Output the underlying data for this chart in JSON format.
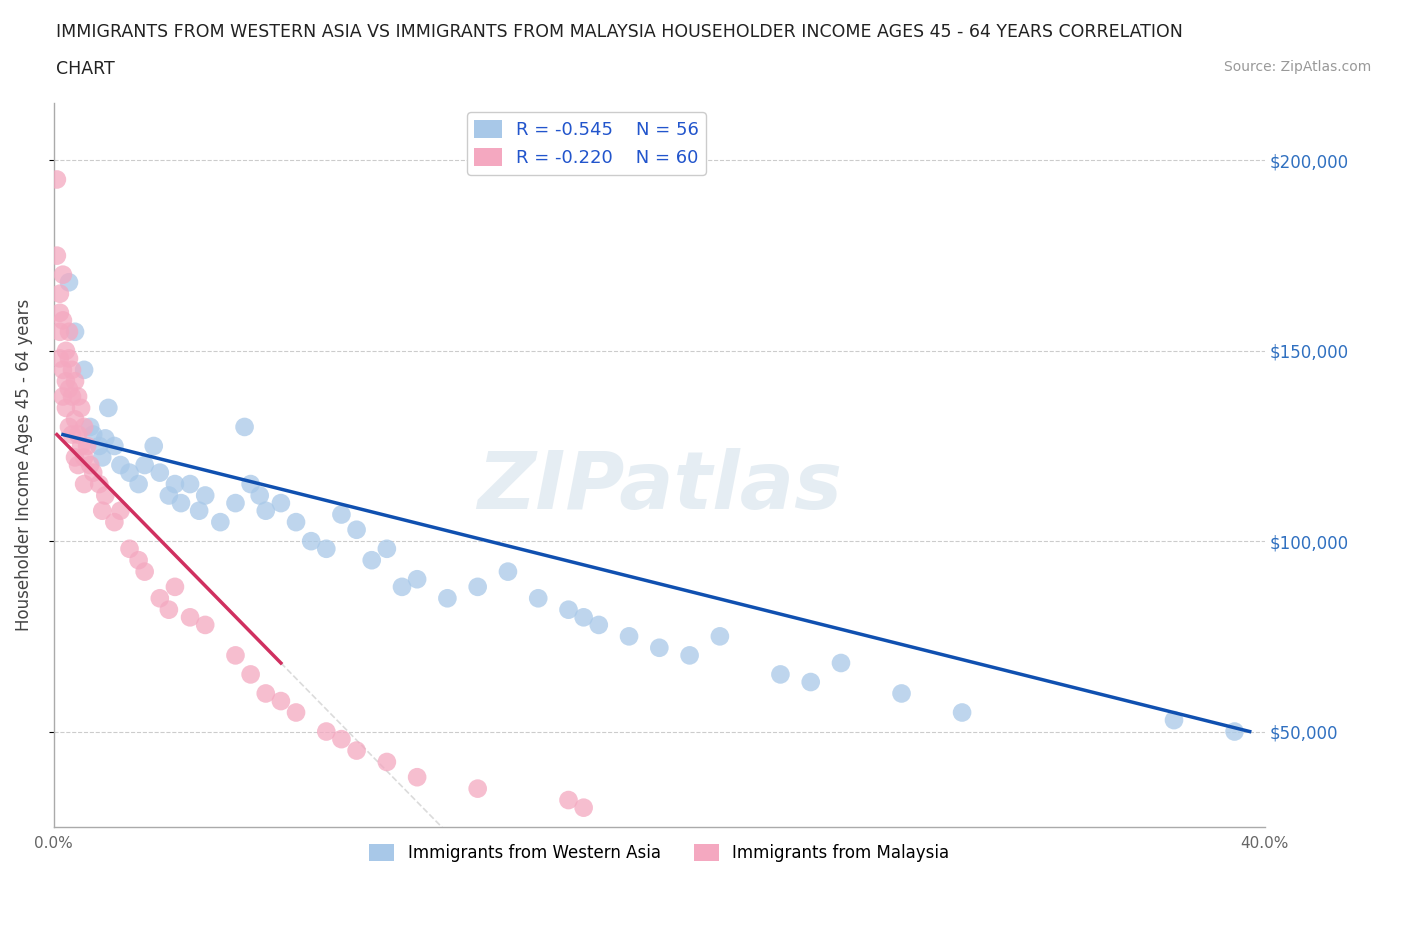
{
  "title_line1": "IMMIGRANTS FROM WESTERN ASIA VS IMMIGRANTS FROM MALAYSIA HOUSEHOLDER INCOME AGES 45 - 64 YEARS CORRELATION",
  "title_line2": "CHART",
  "source_text": "Source: ZipAtlas.com",
  "ylabel": "Householder Income Ages 45 - 64 years",
  "xlim": [
    0.0,
    0.4
  ],
  "ylim": [
    25000,
    215000
  ],
  "yticks": [
    50000,
    100000,
    150000,
    200000
  ],
  "ytick_labels": [
    "$50,000",
    "$100,000",
    "$150,000",
    "$200,000"
  ],
  "xticks": [
    0.0,
    0.05,
    0.1,
    0.15,
    0.2,
    0.25,
    0.3,
    0.35,
    0.4
  ],
  "xtick_labels": [
    "0.0%",
    "",
    "",
    "",
    "",
    "",
    "",
    "",
    "40.0%"
  ],
  "legend_r_western": "-0.545",
  "legend_n_western": "56",
  "legend_r_malaysia": "-0.220",
  "legend_n_malaysia": "60",
  "color_western": "#a8c8e8",
  "color_malaysia": "#f4a8c0",
  "color_line_western": "#1050b0",
  "color_line_malaysia": "#d03060",
  "color_line_extended": "#cccccc",
  "watermark": "ZIPatlas",
  "western_x": [
    0.005,
    0.007,
    0.01,
    0.012,
    0.013,
    0.015,
    0.016,
    0.017,
    0.018,
    0.02,
    0.022,
    0.025,
    0.028,
    0.03,
    0.033,
    0.035,
    0.038,
    0.04,
    0.042,
    0.045,
    0.048,
    0.05,
    0.055,
    0.06,
    0.063,
    0.065,
    0.068,
    0.07,
    0.075,
    0.08,
    0.085,
    0.09,
    0.095,
    0.1,
    0.105,
    0.11,
    0.115,
    0.12,
    0.13,
    0.14,
    0.15,
    0.16,
    0.17,
    0.175,
    0.18,
    0.19,
    0.2,
    0.21,
    0.22,
    0.24,
    0.25,
    0.26,
    0.28,
    0.3,
    0.37,
    0.39
  ],
  "western_y": [
    168000,
    155000,
    145000,
    130000,
    128000,
    125000,
    122000,
    127000,
    135000,
    125000,
    120000,
    118000,
    115000,
    120000,
    125000,
    118000,
    112000,
    115000,
    110000,
    115000,
    108000,
    112000,
    105000,
    110000,
    130000,
    115000,
    112000,
    108000,
    110000,
    105000,
    100000,
    98000,
    107000,
    103000,
    95000,
    98000,
    88000,
    90000,
    85000,
    88000,
    92000,
    85000,
    82000,
    80000,
    78000,
    75000,
    72000,
    70000,
    75000,
    65000,
    63000,
    68000,
    60000,
    55000,
    53000,
    50000
  ],
  "malaysia_x": [
    0.001,
    0.001,
    0.002,
    0.002,
    0.002,
    0.002,
    0.003,
    0.003,
    0.003,
    0.003,
    0.004,
    0.004,
    0.004,
    0.005,
    0.005,
    0.005,
    0.005,
    0.006,
    0.006,
    0.006,
    0.007,
    0.007,
    0.007,
    0.008,
    0.008,
    0.008,
    0.009,
    0.009,
    0.01,
    0.01,
    0.01,
    0.011,
    0.012,
    0.013,
    0.015,
    0.016,
    0.017,
    0.02,
    0.022,
    0.025,
    0.028,
    0.03,
    0.035,
    0.038,
    0.04,
    0.045,
    0.05,
    0.06,
    0.065,
    0.07,
    0.075,
    0.08,
    0.09,
    0.095,
    0.1,
    0.11,
    0.12,
    0.14,
    0.17,
    0.175
  ],
  "malaysia_y": [
    195000,
    175000,
    165000,
    160000,
    155000,
    148000,
    170000,
    158000,
    145000,
    138000,
    150000,
    142000,
    135000,
    155000,
    148000,
    140000,
    130000,
    145000,
    138000,
    128000,
    142000,
    132000,
    122000,
    138000,
    128000,
    120000,
    135000,
    125000,
    130000,
    122000,
    115000,
    125000,
    120000,
    118000,
    115000,
    108000,
    112000,
    105000,
    108000,
    98000,
    95000,
    92000,
    85000,
    82000,
    88000,
    80000,
    78000,
    70000,
    65000,
    60000,
    58000,
    55000,
    50000,
    48000,
    45000,
    42000,
    38000,
    35000,
    32000,
    30000
  ],
  "western_line_x0": 0.003,
  "western_line_y0": 128000,
  "western_line_x1": 0.395,
  "western_line_y1": 50000,
  "malaysia_line_x0": 0.001,
  "malaysia_line_y0": 128000,
  "malaysia_line_x1": 0.075,
  "malaysia_line_y1": 68000
}
